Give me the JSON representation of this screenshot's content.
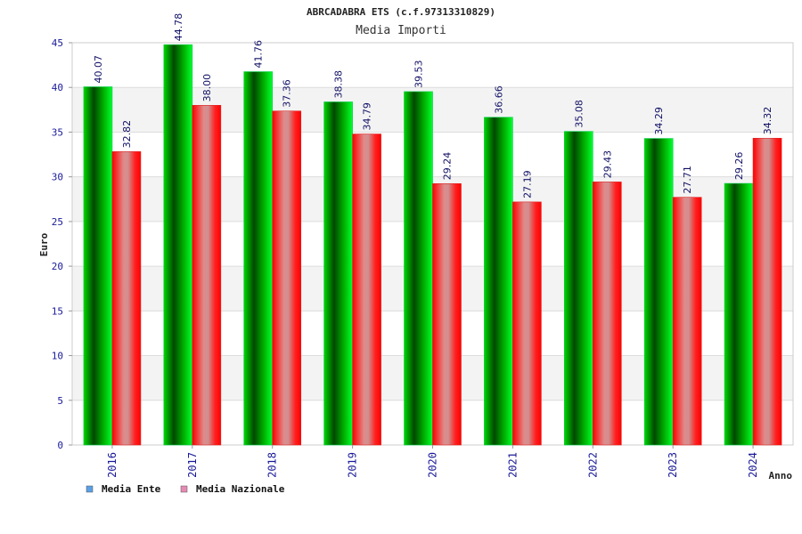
{
  "chart_data": {
    "type": "bar",
    "title": "ABRCADABRA ETS (c.f.97313310829)",
    "subtitle": "Media Importi",
    "xlabel": "Anno",
    "ylabel": "Euro",
    "ylim": [
      0,
      45
    ],
    "yticks": [
      "0",
      "5",
      "10",
      "15",
      "20",
      "25",
      "30",
      "35",
      "40",
      "45"
    ],
    "grid": true,
    "legend_position": "bottom-left",
    "categories": [
      "2016",
      "2017",
      "2018",
      "2019",
      "2020",
      "2021",
      "2022",
      "2023",
      "2024"
    ],
    "series": [
      {
        "name": "Media Ente",
        "values": [
          40.07,
          44.78,
          41.76,
          38.38,
          39.53,
          36.66,
          35.08,
          34.29,
          29.26
        ],
        "labels": [
          "40.07",
          "44.78",
          "41.76",
          "38.38",
          "39.53",
          "36.66",
          "35.08",
          "34.29",
          "29.26"
        ],
        "color": "#00cc00",
        "legend_color": "#5aa0e6"
      },
      {
        "name": "Media Nazionale",
        "values": [
          32.82,
          38.0,
          37.36,
          34.79,
          29.24,
          27.19,
          29.43,
          27.71,
          34.32
        ],
        "labels": [
          "32.82",
          "38.00",
          "37.36",
          "34.79",
          "29.24",
          "27.19",
          "29.43",
          "27.71",
          "34.32"
        ],
        "color": "#ff0000",
        "legend_color": "#e68ab4"
      }
    ]
  }
}
